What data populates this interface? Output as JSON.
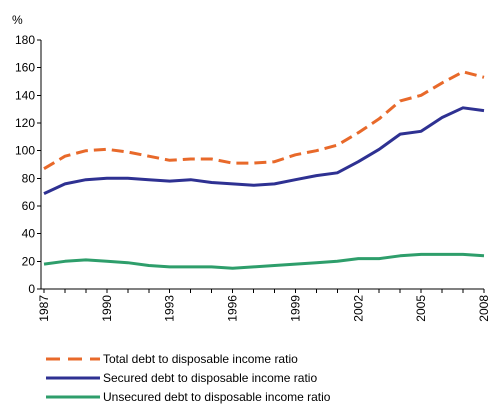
{
  "chart_data": {
    "type": "line",
    "title": "",
    "ylabel": "%",
    "xlabel": "",
    "ylim": [
      0,
      180
    ],
    "yticks": [
      0,
      20,
      40,
      60,
      80,
      100,
      120,
      140,
      160,
      180
    ],
    "xlim": [
      1987,
      2008
    ],
    "xticks": [
      1987,
      1990,
      1993,
      1996,
      1999,
      2002,
      2005,
      2008
    ],
    "x": [
      1987,
      1988,
      1989,
      1990,
      1991,
      1992,
      1993,
      1994,
      1995,
      1996,
      1997,
      1998,
      1999,
      2000,
      2001,
      2002,
      2003,
      2004,
      2005,
      2006,
      2007,
      2008
    ],
    "grid": false,
    "legend_position": "bottom",
    "series": [
      {
        "name": "Total debt to disposable income ratio",
        "color": "#E8692A",
        "style": "dashed",
        "values": [
          87,
          96,
          100,
          101,
          99,
          96,
          93,
          94,
          94,
          91,
          91,
          92,
          97,
          100,
          104,
          113,
          123,
          136,
          140,
          149,
          157,
          153
        ]
      },
      {
        "name": "Secured debt to disposable income ratio",
        "color": "#2E3192",
        "style": "solid",
        "values": [
          69,
          76,
          79,
          80,
          80,
          79,
          78,
          79,
          77,
          76,
          75,
          76,
          79,
          82,
          84,
          92,
          101,
          112,
          114,
          124,
          131,
          129
        ]
      },
      {
        "name": "Unsecured debt to disposable income ratio",
        "color": "#2E9E6B",
        "style": "solid",
        "values": [
          18,
          20,
          21,
          20,
          19,
          17,
          16,
          16,
          16,
          15,
          16,
          17,
          18,
          19,
          20,
          22,
          22,
          24,
          25,
          25,
          25,
          24
        ]
      }
    ]
  }
}
